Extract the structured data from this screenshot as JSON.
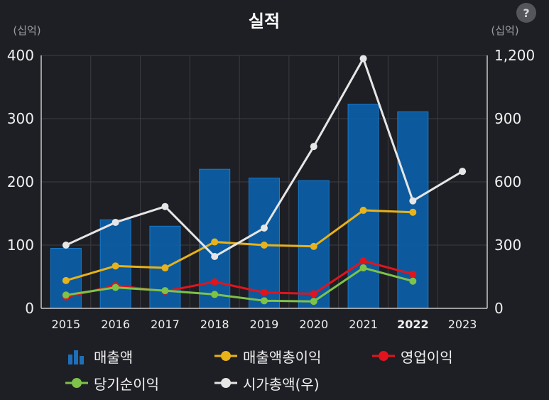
{
  "help_label": "?",
  "chart_data": {
    "type": "bar+line",
    "title": "실적",
    "y_left_unit": "(십억)",
    "y_right_unit": "(십억)",
    "categories": [
      "2015",
      "2016",
      "2017",
      "2018",
      "2019",
      "2020",
      "2021",
      "2022",
      "2023"
    ],
    "highlight_category": "2022",
    "ylim_left": [
      0,
      400
    ],
    "yticks_left": [
      "0",
      "100",
      "200",
      "300",
      "400"
    ],
    "ylim_right": [
      0,
      1200
    ],
    "yticks_right": [
      "0",
      "300",
      "600",
      "900",
      "1,200"
    ],
    "grid": true,
    "legend_position": "bottom",
    "series": [
      {
        "name": "매출액",
        "type": "bar",
        "axis": "left",
        "color": "#0b5fa8",
        "values": [
          95,
          140,
          130,
          220,
          206,
          202,
          323,
          311,
          null
        ]
      },
      {
        "name": "매출액총이익",
        "type": "line",
        "axis": "left",
        "color": "#e8b21a",
        "values": [
          44,
          67,
          64,
          105,
          100,
          98,
          155,
          152,
          null
        ]
      },
      {
        "name": "영업이익",
        "type": "line",
        "axis": "left",
        "color": "#e0141e",
        "values": [
          18,
          36,
          27,
          42,
          25,
          23,
          75,
          54,
          null
        ]
      },
      {
        "name": "당기순이익",
        "type": "line",
        "axis": "left",
        "color": "#7ec24a",
        "values": [
          21,
          33,
          28,
          22,
          12,
          11,
          64,
          43,
          null
        ]
      },
      {
        "name": "시가총액(우)",
        "type": "line",
        "axis": "right",
        "color": "#e6e6e6",
        "values": [
          300,
          408,
          483,
          246,
          381,
          768,
          1185,
          510,
          650
        ]
      }
    ]
  }
}
